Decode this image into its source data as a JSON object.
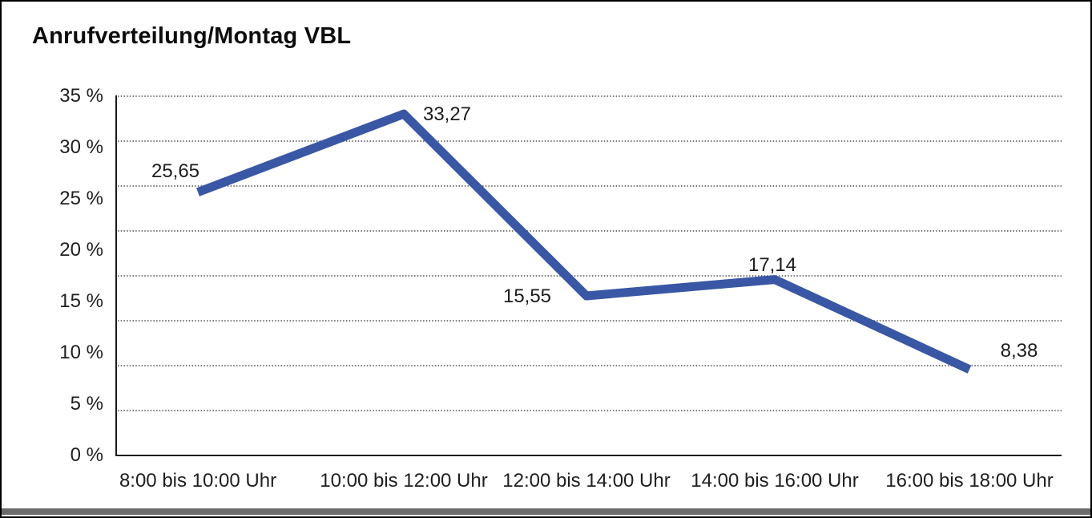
{
  "window": {
    "title": "Anrufverteilung/Montag VBL"
  },
  "chart_data": {
    "type": "line",
    "title": "Anrufverteilung/Montag VBL",
    "categories": [
      "8:00 bis 10:00 Uhr",
      "10:00 bis 12:00 Uhr",
      "12:00 bis 14:00 Uhr",
      "14:00 bis 16:00 Uhr",
      "16:00 bis 18:00 Uhr"
    ],
    "values": [
      25.65,
      33.27,
      15.55,
      17.14,
      8.38
    ],
    "value_labels": [
      "25,65",
      "33,27",
      "15,55",
      "17,14",
      "8,38"
    ],
    "y_tick_labels": [
      "35 %",
      "30 %",
      "25 %",
      "20 %",
      "15 %",
      "10 %",
      "5 %",
      "0 %"
    ],
    "xlabel": "",
    "ylabel": "",
    "ylim": [
      0,
      35
    ],
    "y_tick_step": 5,
    "grid": "horizontal-dotted",
    "legend": "none",
    "line_color": "#3A57A5",
    "axis_color": "#1a1a1a",
    "grid_color": "#4d4d4d"
  }
}
